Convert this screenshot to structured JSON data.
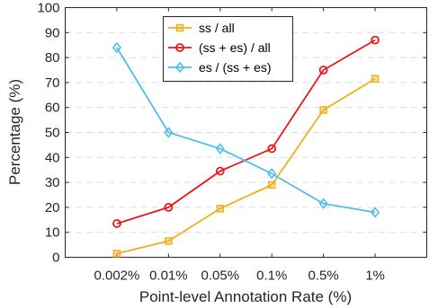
{
  "chart_data": {
    "type": "line",
    "xlabel": "Point-level Annotation Rate (%)",
    "ylabel": "Percentage (%)",
    "categories": [
      "0.002%",
      "0.01%",
      "0.05%",
      "0.1%",
      "0.5%",
      "1%"
    ],
    "ylim": [
      0,
      100
    ],
    "yticks": [
      0,
      10,
      20,
      30,
      40,
      50,
      60,
      70,
      80,
      90,
      100
    ],
    "grid": "horizontal dashed",
    "legend_position": "top-center",
    "series": [
      {
        "name": "ss / all",
        "color": "#EDB120",
        "marker": "square",
        "values": [
          1.5,
          6.5,
          19.5,
          29,
          59,
          71.5
        ]
      },
      {
        "name": "(ss + es) / all",
        "color": "#E8191B",
        "marker": "circle",
        "values": [
          13.5,
          20,
          34.5,
          43.5,
          75,
          87
        ]
      },
      {
        "name": "es / (ss + es)",
        "color": "#4DBEEE",
        "marker": "diamond",
        "values": [
          84,
          50,
          43.5,
          33.5,
          21.5,
          18
        ]
      }
    ]
  }
}
